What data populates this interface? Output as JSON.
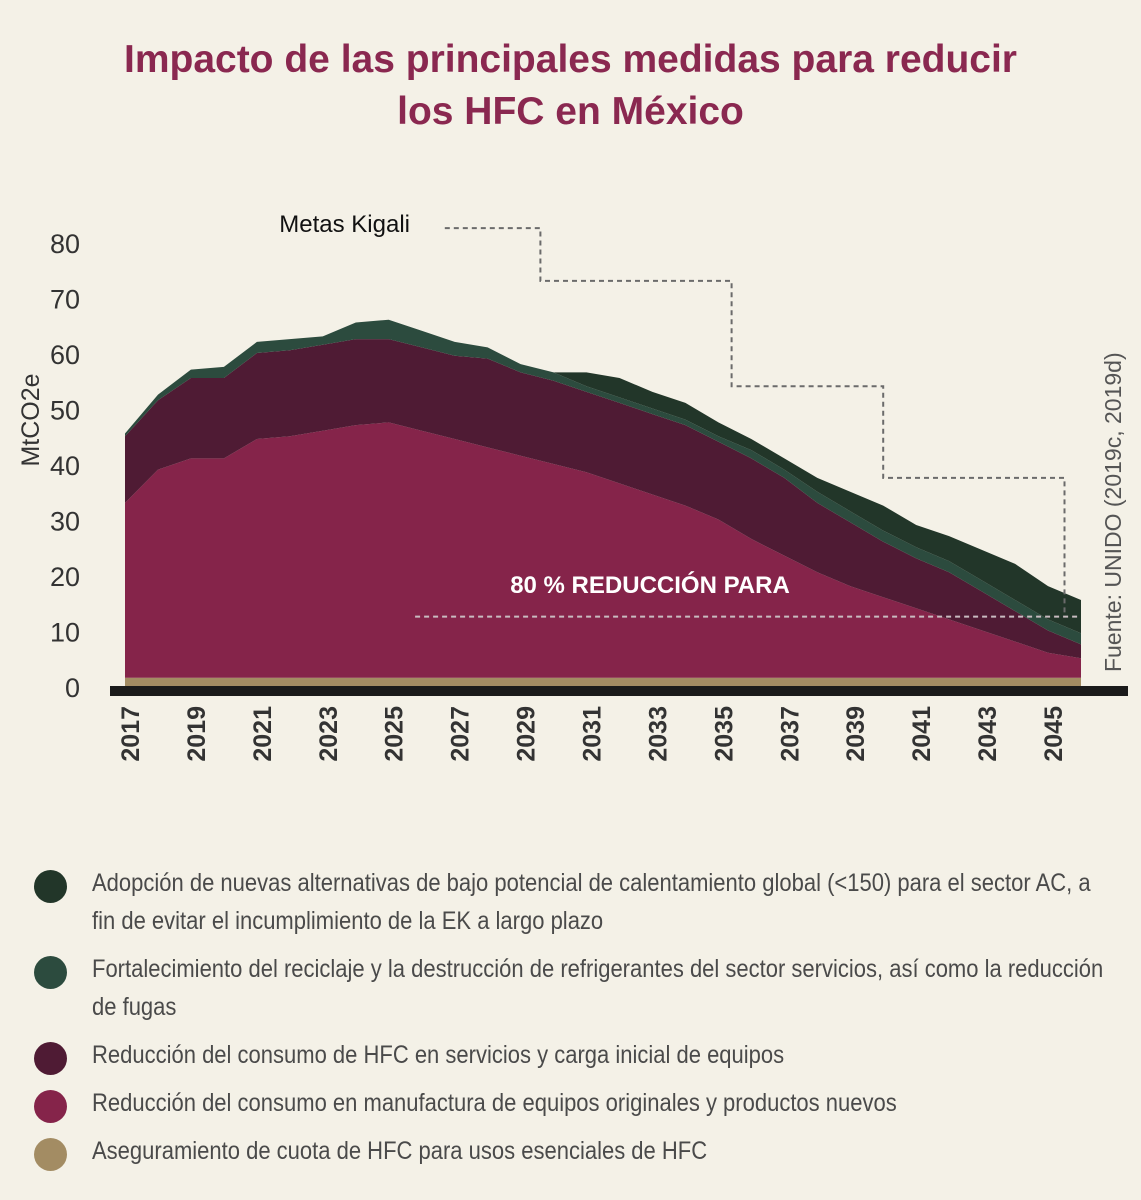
{
  "title": {
    "line1": "Impacto de las principales medidas para reducir",
    "line2": "los HFC en México"
  },
  "chart_data": {
    "type": "area",
    "stacked": true,
    "ylabel": "MtCO2e",
    "ylim": [
      0,
      80
    ],
    "yticks": [
      0,
      10,
      20,
      30,
      40,
      50,
      60,
      70,
      80
    ],
    "xlim": [
      2017,
      2046
    ],
    "xtick_labels": [
      "2017",
      "2019",
      "2021",
      "2023",
      "2025",
      "2027",
      "2029",
      "2031",
      "2033",
      "2035",
      "2037",
      "2039",
      "2041",
      "2043",
      "2045"
    ],
    "x": [
      2017,
      2018,
      2019,
      2020,
      2021,
      2022,
      2023,
      2024,
      2025,
      2026,
      2027,
      2028,
      2029,
      2030,
      2031,
      2032,
      2033,
      2034,
      2035,
      2036,
      2037,
      2038,
      2039,
      2040,
      2041,
      2042,
      2043,
      2044,
      2045,
      2046
    ],
    "series": [
      {
        "name": "Aseguramiento de cuota de HFC para usos esenciales de HFC",
        "color": "#a38c63",
        "values": [
          1.5,
          1.5,
          1.5,
          1.5,
          1.5,
          1.5,
          1.5,
          1.5,
          1.5,
          1.5,
          1.5,
          1.5,
          1.5,
          1.5,
          1.5,
          1.5,
          1.5,
          1.5,
          1.5,
          1.5,
          1.5,
          1.5,
          1.5,
          1.5,
          1.5,
          1.5,
          1.5,
          1.5,
          1.5,
          1.5
        ]
      },
      {
        "name": "Reducción del consumo en manufactura de equipos originales y productos nuevos",
        "color": "#85244a",
        "values": [
          31.5,
          37.5,
          39.5,
          39.5,
          43.0,
          43.5,
          44.5,
          45.5,
          46.0,
          44.5,
          43.0,
          41.5,
          40.0,
          38.5,
          37.0,
          35.0,
          33.0,
          31.0,
          28.5,
          25.0,
          22.0,
          19.0,
          16.5,
          14.5,
          12.5,
          10.5,
          8.5,
          6.5,
          4.5,
          3.5
        ]
      },
      {
        "name": "Reducción del consumo de HFC en servicios y carga inicial de equipos",
        "color": "#4f1b34",
        "values": [
          12.0,
          12.5,
          14.5,
          14.5,
          15.5,
          15.5,
          15.5,
          15.5,
          15.0,
          15.0,
          15.0,
          16.0,
          15.0,
          15.0,
          14.5,
          14.5,
          14.5,
          14.5,
          14.0,
          14.5,
          14.0,
          12.5,
          11.5,
          10.0,
          9.0,
          8.5,
          7.0,
          5.5,
          4.0,
          2.5
        ]
      },
      {
        "name": "Fortalecimiento del reciclaje y la destrucción de refrigerantes del sector servicios, así como la reducción de fugas",
        "color": "#2c4b3e",
        "values": [
          0.5,
          1.0,
          1.5,
          2.0,
          2.0,
          2.0,
          1.5,
          3.0,
          3.5,
          3.0,
          2.5,
          2.0,
          1.5,
          1.5,
          1.0,
          1.0,
          1.0,
          1.0,
          1.0,
          1.5,
          1.5,
          2.0,
          2.0,
          2.0,
          2.0,
          2.0,
          2.0,
          2.0,
          2.0,
          2.0
        ]
      },
      {
        "name": "Adopción de nuevas alternativas de bajo potencial de calentamiento global (<150) para el sector AC, a fin de evitar el incumplimiento de la EK a largo plazo",
        "color": "#223629",
        "values": [
          0,
          0,
          0,
          0,
          0,
          0,
          0,
          0,
          0,
          0,
          0,
          0,
          0,
          0,
          2.5,
          3.5,
          3.0,
          3.0,
          2.5,
          2.0,
          2.0,
          2.5,
          3.5,
          4.5,
          4.0,
          4.5,
          5.5,
          6.5,
          6.0,
          6.0
        ]
      }
    ],
    "kigali_line": {
      "label": "Metas Kigali",
      "x": [
        2026.7,
        2029.6,
        2029.6,
        2035.4,
        2035.4,
        2040.0,
        2040.0,
        2045.5,
        2045.5
      ],
      "y": [
        82.5,
        82.5,
        73.0,
        73.0,
        54.0,
        54.0,
        37.5,
        37.5,
        12.5
      ]
    },
    "reduction_line": {
      "label": "80 % REDUCCIÓN PARA",
      "x": [
        2025.8,
        2046.0
      ],
      "y": [
        12.5,
        12.5
      ]
    },
    "source": "Fuente: UNIDO (2019c, 2019d)",
    "legend_position": "bottom"
  }
}
